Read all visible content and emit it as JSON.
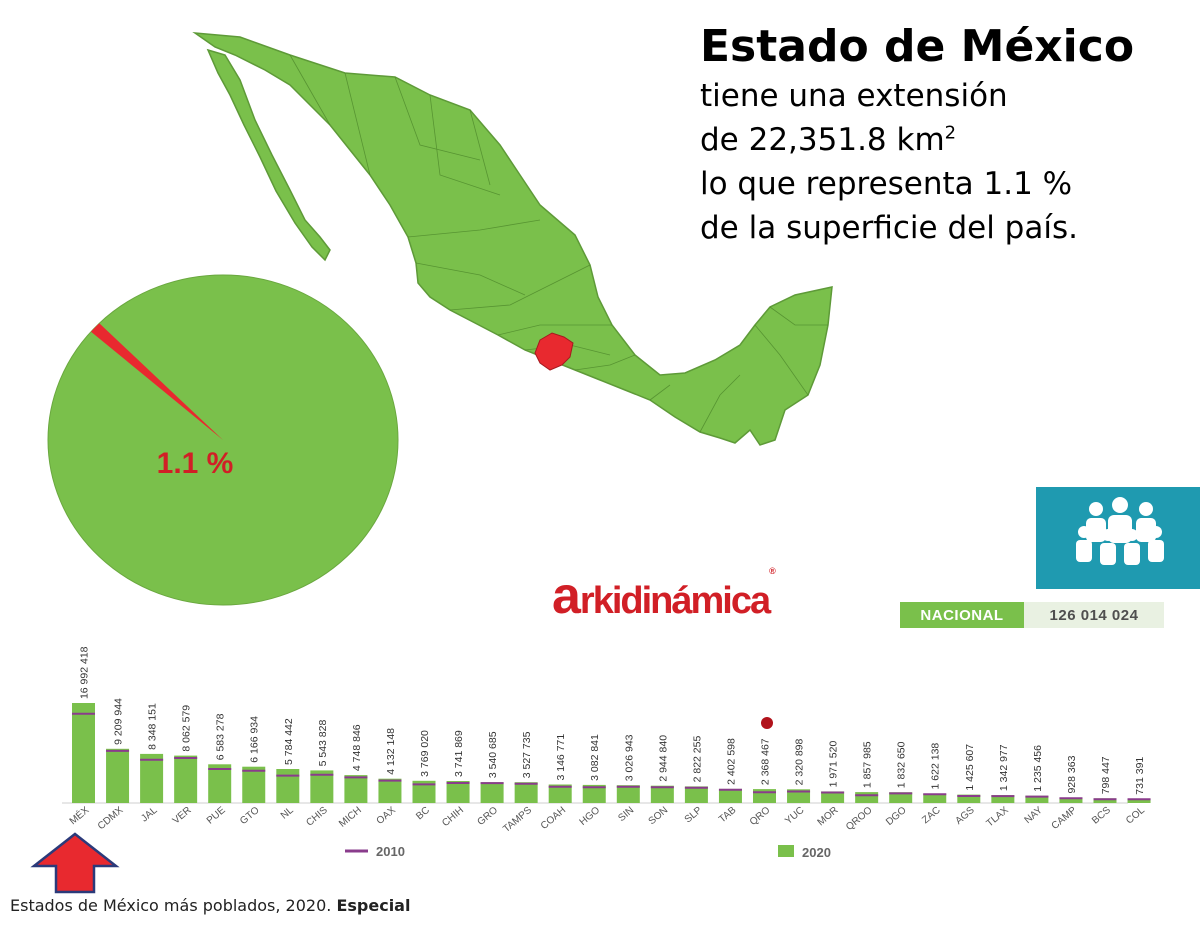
{
  "header": {
    "title": "Estado de México",
    "line1": "tiene una extensión",
    "line2_prefix": "de 22,351.8 km",
    "line2_sup": "2",
    "line3": "lo que representa 1.1 %",
    "line4": "de la superficie del país."
  },
  "pie": {
    "label": "1.1 %",
    "share_percent": 1.1,
    "main_color": "#7ac04b",
    "slice_color": "#e8292f"
  },
  "brand": {
    "a": "a",
    "rest": "rkidinámica",
    "reg": "®"
  },
  "national": {
    "label": "NACIONAL",
    "value": "126 014 024"
  },
  "legend": {
    "series_2010": "2010",
    "series_2020": "2020"
  },
  "caption": {
    "text": "Estados de México más poblados, 2020.",
    "bold": "Especial"
  },
  "icons": [
    "map-of-mexico-icon",
    "people-group-icon",
    "red-up-arrow-icon"
  ],
  "colors": {
    "green": "#7ac04b",
    "purple": "#8a3c8c",
    "red": "#e8292f",
    "teal": "#1f9ab0",
    "brand_red": "#d11f26"
  },
  "chart_data": {
    "type": "bar",
    "categories": [
      "MÉX",
      "CDMX",
      "JAL",
      "VER",
      "PUE",
      "GTO",
      "NL",
      "CHIS",
      "MICH",
      "OAX",
      "BC",
      "CHIH",
      "GRO",
      "TAMPS",
      "COAH",
      "HGO",
      "SIN",
      "SON",
      "SLP",
      "TAB",
      "QRO",
      "YUC",
      "MOR",
      "QROO",
      "DGO",
      "ZAC",
      "AGS",
      "TLAX",
      "NAY",
      "CAMP",
      "BCS",
      "COL"
    ],
    "series": [
      {
        "name": "2020",
        "type": "bar",
        "values": [
          16992418,
          9209944,
          8348151,
          8062579,
          6583278,
          6166934,
          5784442,
          5543828,
          4748846,
          4132148,
          3769020,
          3741869,
          3540685,
          3527735,
          3146771,
          3082841,
          3026943,
          2944840,
          2822255,
          2402598,
          2368467,
          2320898,
          1971520,
          1857985,
          1832650,
          1622138,
          1425607,
          1342977,
          1235456,
          928363,
          798447,
          731391
        ],
        "labels": [
          "16 992 418",
          "9 209 944",
          "8 348 151",
          "8 062 579",
          "6 583 278",
          "6 166 934",
          "5 784 442",
          "5 543 828",
          "4 748 846",
          "4 132 148",
          "3 769 020",
          "3 741 869",
          "3 540 685",
          "3 527 735",
          "3 146 771",
          "3 082 841",
          "3 026 943",
          "2 944 840",
          "2 822 255",
          "2 402 598",
          "2 368 467",
          "2 320 898",
          "1 971 520",
          "1 857 985",
          "1 832 650",
          "1 622 138",
          "1 425 607",
          "1 342 977",
          "1 235 456",
          "928 363",
          "798 447",
          "731 391"
        ]
      },
      {
        "name": "2010",
        "type": "marker",
        "values": [
          15175862,
          8851080,
          7350682,
          7643194,
          5779829,
          5486372,
          4653458,
          4796580,
          4351037,
          3801962,
          3155070,
          3406465,
          3388768,
          3268554,
          2748391,
          2665018,
          2767761,
          2662480,
          2585518,
          2238603,
          1827937,
          1955577,
          1777227,
          1325578,
          1632934,
          1490668,
          1184996,
          1169936,
          1084979,
          822441,
          637026,
          650555
        ]
      }
    ],
    "ylim": [
      0,
      17000000
    ],
    "legend": "bottom",
    "grid": false
  }
}
